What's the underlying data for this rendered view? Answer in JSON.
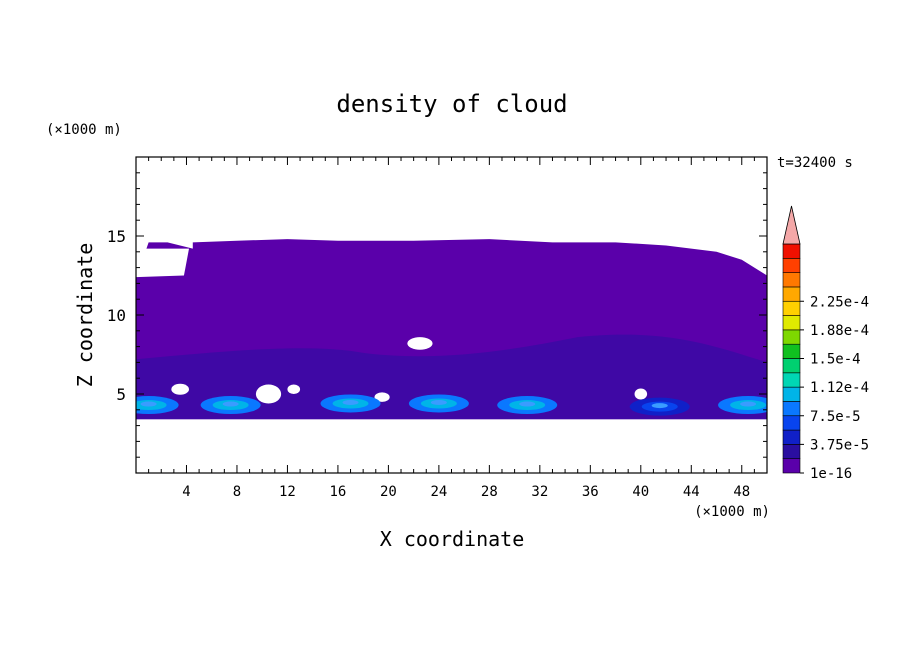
{
  "chart_data": {
    "type": "heatmap",
    "title": "density of cloud",
    "xlabel": "X coordinate",
    "ylabel": "Z coordinate",
    "x_unit": "(×1000 m)",
    "y_unit": "(×1000 m)",
    "time_label": "t=32400 s",
    "xlim": [
      0,
      50
    ],
    "ylim": [
      0,
      20
    ],
    "x_ticks": [
      "4",
      "8",
      "12",
      "16",
      "20",
      "24",
      "28",
      "32",
      "36",
      "40",
      "44",
      "48"
    ],
    "y_ticks": [
      "5",
      "10",
      "15"
    ],
    "colorbar": {
      "labels": [
        "1e-16",
        "3.75e-5",
        "7.5e-5",
        "1.12e-4",
        "1.5e-4",
        "1.88e-4",
        "2.25e-4"
      ],
      "colors": [
        "#5a00aa",
        "#2a0ea0",
        "#1020c8",
        "#0844ee",
        "#0a78ff",
        "#00b4e8",
        "#00d6b4",
        "#00d070",
        "#10c020",
        "#7ed800",
        "#e0ea00",
        "#ffd000",
        "#ffa800",
        "#ff7800",
        "#ff4000",
        "#f01000"
      ],
      "extend_color": "#f4a8a8"
    },
    "cloud_base_z": 3.4,
    "cloud_top_profile": {
      "x": [
        1,
        2.5,
        4.5,
        4.5,
        8,
        12,
        16,
        22,
        28,
        33,
        38,
        42,
        46,
        48,
        50
      ],
      "z": [
        14.6,
        14.6,
        14.2,
        14.6,
        14.7,
        14.8,
        14.7,
        14.7,
        14.8,
        14.6,
        14.6,
        14.4,
        14.0,
        13.5,
        12.5
      ]
    },
    "density_max_regions": [
      {
        "x": 1,
        "z": 4.3,
        "level": "7.5e-5"
      },
      {
        "x": 7.5,
        "z": 4.3,
        "level": "7.5e-5"
      },
      {
        "x": 17,
        "z": 4.4,
        "level": "7.5e-5"
      },
      {
        "x": 24,
        "z": 4.4,
        "level": "7.5e-5"
      },
      {
        "x": 31,
        "z": 4.3,
        "level": "7.5e-5"
      },
      {
        "x": 41.5,
        "z": 4.2,
        "level": "3.75e-5"
      },
      {
        "x": 48.5,
        "z": 4.3,
        "level": "7.5e-5"
      }
    ]
  }
}
